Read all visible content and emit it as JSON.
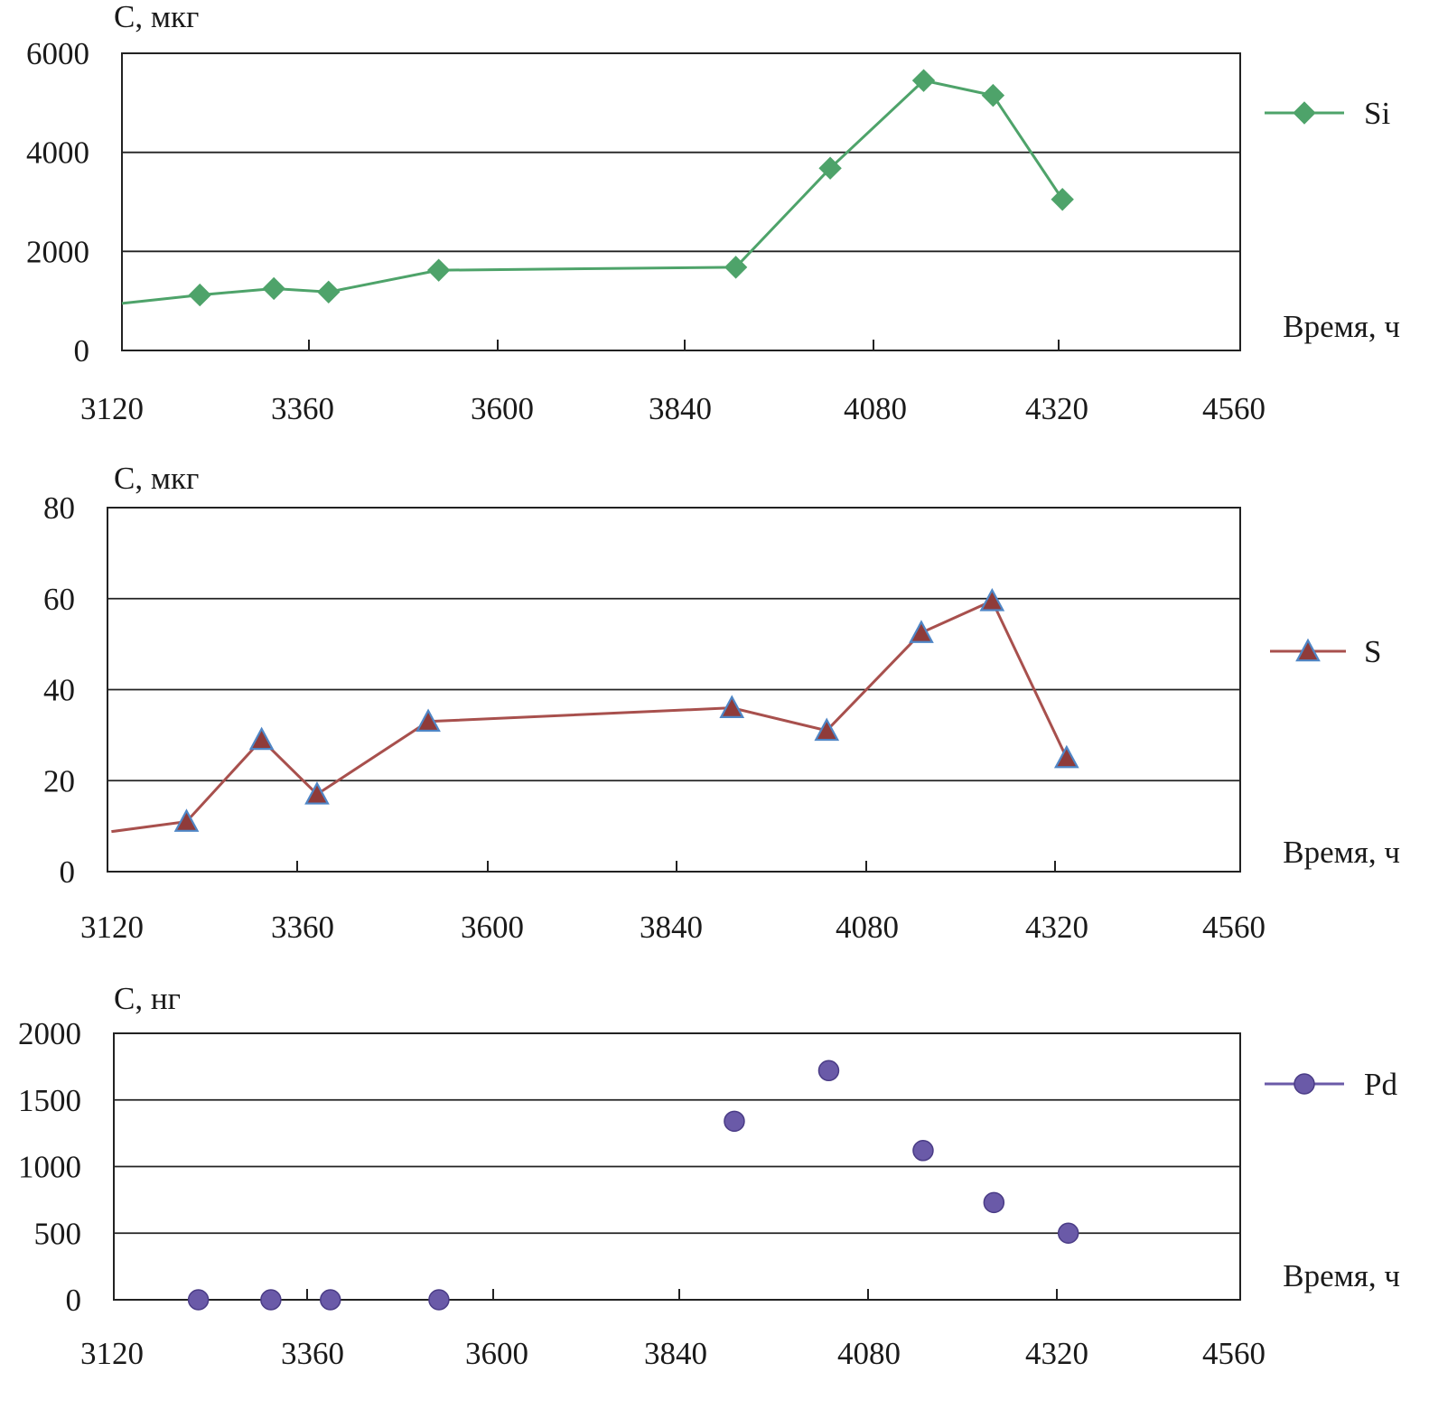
{
  "chart_data": [
    {
      "type": "line",
      "ylabel": "C, мкг",
      "xlabel": "Время, ч",
      "xlim": [
        3120,
        4560
      ],
      "ylim": [
        0,
        6000
      ],
      "x_ticks": [
        "3120",
        "3360",
        "3600",
        "3840",
        "4080",
        "4320",
        "4560"
      ],
      "y_ticks": [
        "0",
        "2000",
        "4000",
        "6000"
      ],
      "grid": true,
      "legend_position": "right",
      "series": [
        {
          "name": "Si",
          "color": "#4ea36a",
          "marker": "diamond",
          "line": true,
          "leading_segment": {
            "x": 3120,
            "y": 950
          },
          "x": [
            3220,
            3315,
            3385,
            3525,
            3905,
            4025,
            4145,
            4235,
            4325
          ],
          "y": [
            1120,
            1250,
            1180,
            1620,
            1680,
            3680,
            5450,
            5150,
            3050
          ]
        }
      ]
    },
    {
      "type": "line",
      "ylabel": "C, мкг",
      "xlabel": "Время, ч",
      "xlim": [
        3120,
        4560
      ],
      "ylim": [
        0,
        80
      ],
      "x_ticks": [
        "3120",
        "3360",
        "3600",
        "3840",
        "4080",
        "4320",
        "4560"
      ],
      "y_ticks": [
        "0",
        "20",
        "40",
        "60",
        "80"
      ],
      "grid": true,
      "legend_position": "right",
      "series": [
        {
          "name": "S",
          "color": "#a8504d",
          "marker": "triangle",
          "line": true,
          "leading_segment": {
            "x": 3125,
            "y": 8.8
          },
          "x": [
            3220,
            3315,
            3385,
            3525,
            3910,
            4030,
            4150,
            4240,
            4335
          ],
          "y": [
            11,
            29,
            17,
            33,
            36,
            31,
            52.5,
            59.5,
            25
          ]
        }
      ]
    },
    {
      "type": "scatter",
      "ylabel": "C, нг",
      "xlabel": "Время, ч",
      "xlim": [
        3120,
        4560
      ],
      "ylim": [
        0,
        2000
      ],
      "x_ticks": [
        "3120",
        "3360",
        "3600",
        "3840",
        "4080",
        "4320",
        "4560"
      ],
      "y_ticks": [
        "0",
        "500",
        "1000",
        "1500",
        "2000"
      ],
      "grid": true,
      "legend_position": "right",
      "series": [
        {
          "name": "Pd",
          "color": "#6a5aa8",
          "marker": "circle",
          "line": false,
          "x": [
            3225,
            3315,
            3390,
            3530,
            3910,
            4030,
            4150,
            4240,
            4335
          ],
          "y": [
            0,
            0,
            0,
            0,
            1340,
            1720,
            1120,
            730,
            500
          ]
        }
      ]
    }
  ]
}
